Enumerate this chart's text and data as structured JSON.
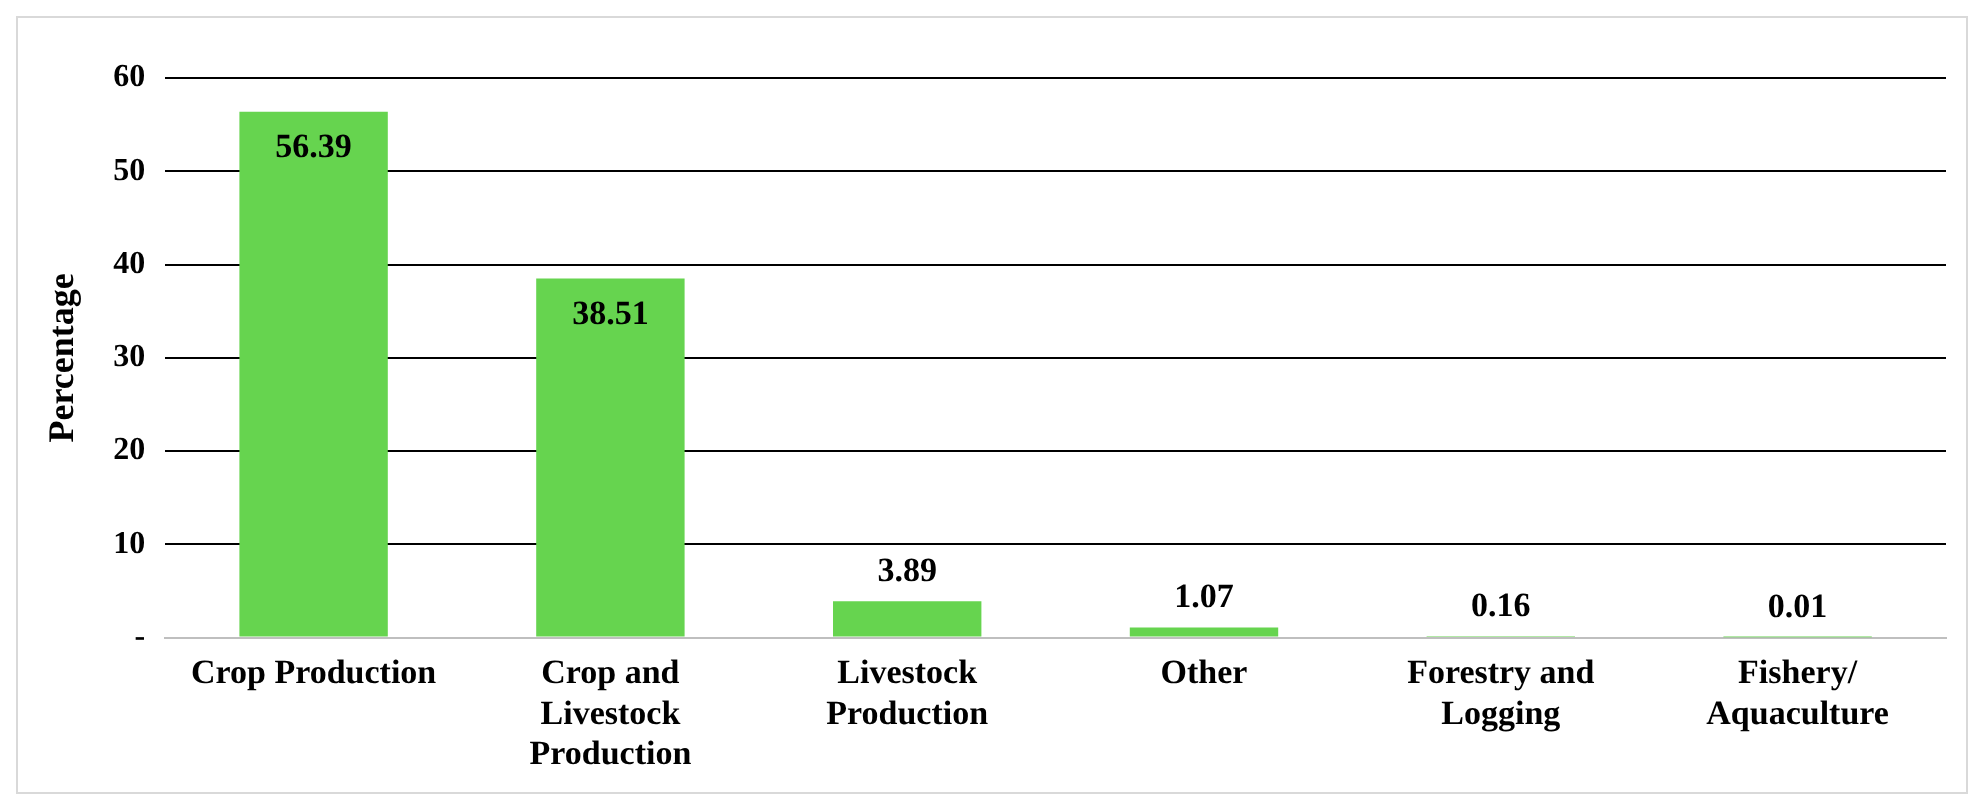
{
  "chart_data": {
    "type": "bar",
    "ylabel": "Percentage",
    "categories": [
      "Crop Production",
      "Crop and Livestock Production",
      "Livestock Production",
      "Other",
      "Forestry and Logging",
      "Fishery/ Aquaculture"
    ],
    "values": [
      56.39,
      38.51,
      3.89,
      1.07,
      0.16,
      0.01
    ],
    "color": "#66d44f",
    "ylim": [
      0,
      60
    ],
    "yticks": [
      {
        "value": 0,
        "label": "-"
      },
      10,
      20,
      30,
      40,
      50,
      60
    ],
    "grid": "y",
    "data_labels": true,
    "legend": false
  }
}
